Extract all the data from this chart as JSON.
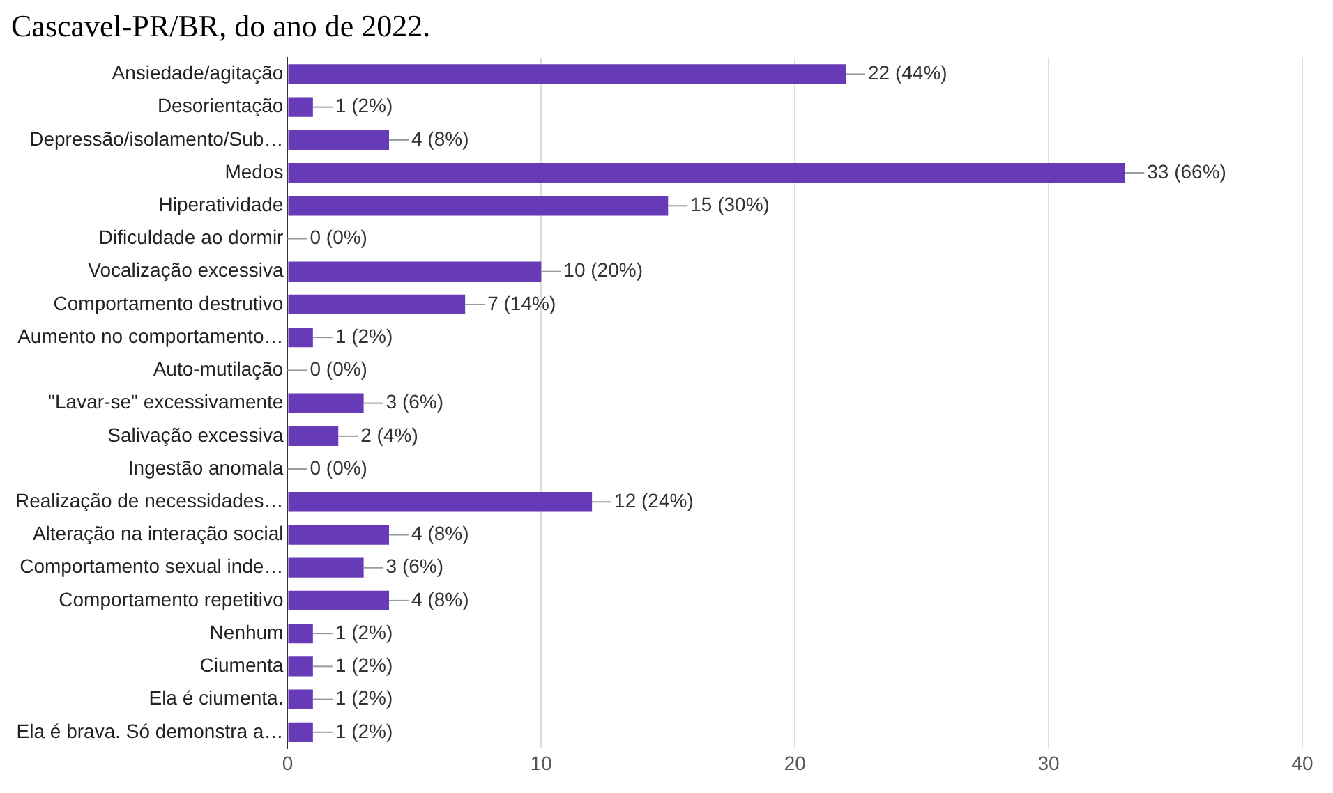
{
  "chart_data": {
    "type": "bar",
    "orientation": "horizontal",
    "title": "Cascavel-PR/BR, do ano de 2022.",
    "categories": [
      "Ansiedade/agitação",
      "Desorientação",
      "Depressão/isolamento/Sub…",
      "Medos",
      "Hiperatividade",
      "Dificuldade ao dormir",
      "Vocalização excessiva",
      "Comportamento destrutivo",
      "Aumento no comportamento…",
      "Auto-mutilação",
      "\"Lavar-se\" excessivamente",
      "Salivação excessiva",
      "Ingestão anomala",
      "Realização de necessidades…",
      "Alteração na interação social",
      "Comportamento sexual inde…",
      "Comportamento repetitivo",
      "Nenhum",
      "Ciumenta",
      "Ela é ciumenta.",
      "Ela é brava. Só demonstra a…"
    ],
    "values": [
      22,
      1,
      4,
      33,
      15,
      0,
      10,
      7,
      1,
      0,
      3,
      2,
      0,
      12,
      4,
      3,
      4,
      1,
      1,
      1,
      1
    ],
    "value_labels": [
      "22 (44%)",
      "1 (2%)",
      "4 (8%)",
      "33 (66%)",
      "15 (30%)",
      "0 (0%)",
      "10 (20%)",
      "7 (14%)",
      "1 (2%)",
      "0 (0%)",
      "3 (6%)",
      "2 (4%)",
      "0 (0%)",
      "12 (24%)",
      "4 (8%)",
      "3 (6%)",
      "4 (8%)",
      "1 (2%)",
      "1 (2%)",
      "1 (2%)",
      "1 (2%)"
    ],
    "color": "#673ab7",
    "xlim": [
      0,
      40
    ],
    "xticks": [
      0,
      10,
      20,
      30,
      40
    ],
    "grid": "x",
    "legend": false
  }
}
